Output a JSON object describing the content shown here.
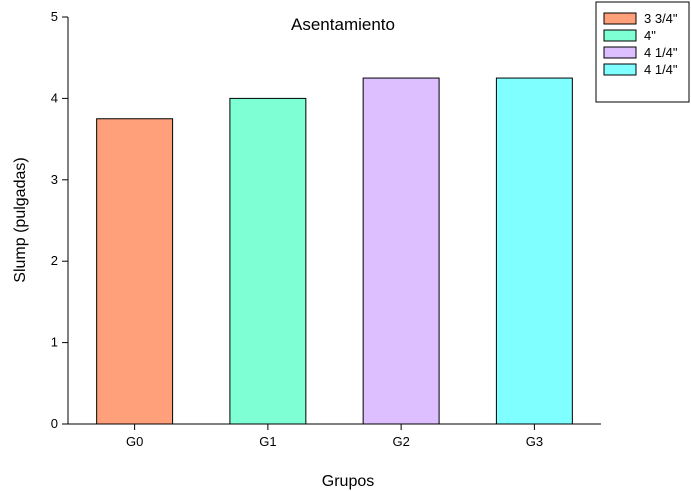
{
  "chart_data": {
    "type": "bar",
    "title": "Asentamiento",
    "xlabel": "Grupos",
    "ylabel": "Slump (pulgadas)",
    "categories": [
      "G0",
      "G1",
      "G2",
      "G3"
    ],
    "values": [
      3.75,
      4.0,
      4.25,
      4.25
    ],
    "colors": [
      "#FFA07A",
      "#7FFFD4",
      "#DDBEFF",
      "#7FFFFF"
    ],
    "ylim": [
      0,
      5
    ],
    "yticks": [
      0,
      1,
      2,
      3,
      4,
      5
    ],
    "grid": false,
    "legend": {
      "position": "top-right",
      "entries": [
        "3 3/4\"",
        "4\"",
        "4 1/4\"",
        "4 1/4\""
      ]
    }
  }
}
